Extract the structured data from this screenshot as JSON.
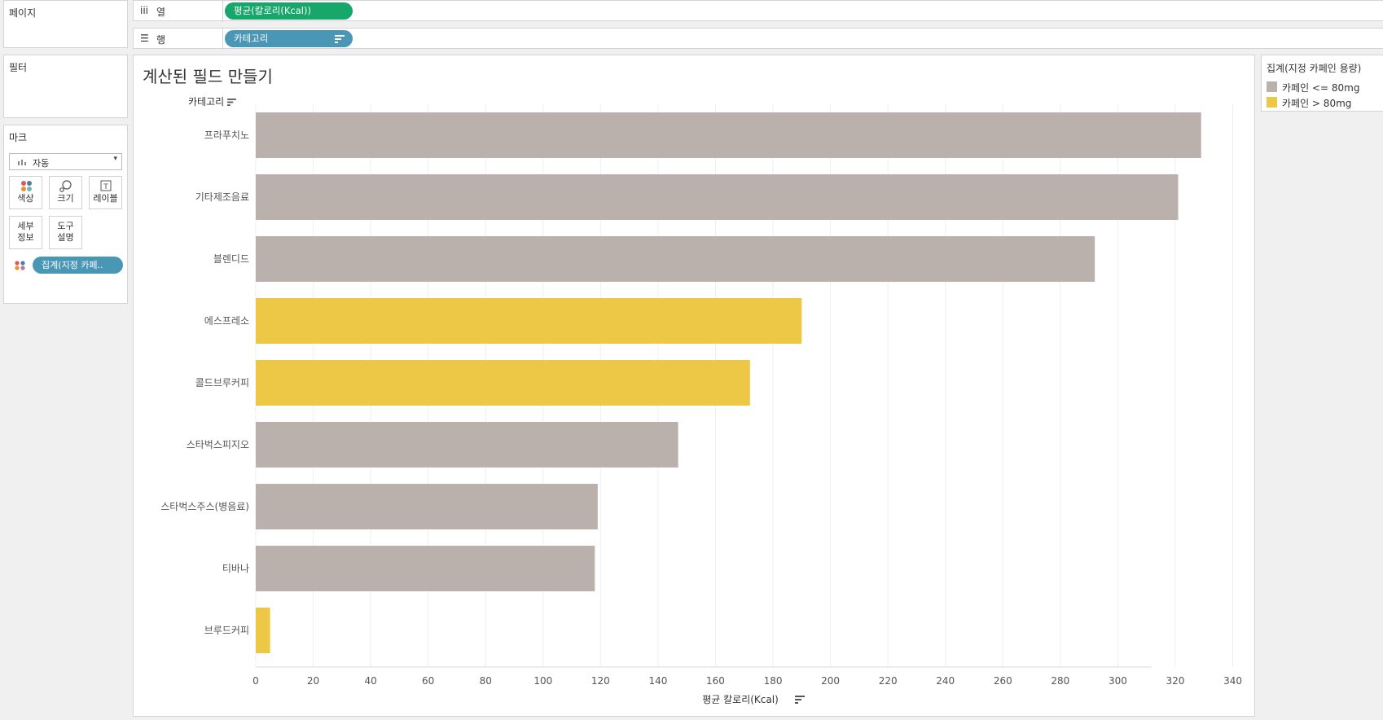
{
  "left_panels": {
    "pages_title": "페이지",
    "filters_title": "필터",
    "marks_title": "마크",
    "mark_type": "자동",
    "mark_buttons": {
      "color": "색상",
      "size": "크기",
      "label": "레이블",
      "detail_1": "세부",
      "detail_2": "정보",
      "tooltip_1": "도구",
      "tooltip_2": "설명"
    },
    "color_pill": "집계(지정 카페.."
  },
  "shelves": {
    "columns_label": "열",
    "columns_pill": "평균(칼로리(Kcal))",
    "rows_label": "행",
    "rows_pill": "카테고리"
  },
  "viz": {
    "title": "계산된 필드 만들기",
    "row_header": "카테고리"
  },
  "legend": {
    "title": "집계(지정 카페인 용량)",
    "items": [
      {
        "label": "카페인 <= 80mg",
        "color": "#bab0ac"
      },
      {
        "label": "카페인 > 80mg",
        "color": "#ecc846"
      }
    ]
  },
  "colors": {
    "low_caffeine": "#bab0ac",
    "high_caffeine": "#ecc846",
    "green_pill": "#17a76a",
    "blue_pill": "#4a97b5"
  },
  "chart_data": {
    "type": "bar",
    "orientation": "horizontal",
    "title": "계산된 필드 만들기",
    "xlabel": "평균 칼로리(Kcal)",
    "ylabel": "카테고리",
    "xlim": [
      0,
      350
    ],
    "x_ticks": [
      0,
      20,
      40,
      60,
      80,
      100,
      120,
      140,
      160,
      180,
      200,
      220,
      240,
      260,
      280,
      300,
      320,
      340
    ],
    "grid": "vertical",
    "legend_position": "right",
    "categories": [
      "프라푸치노",
      "기타제조음료",
      "블렌디드",
      "에스프레소",
      "콜드브루커피",
      "스타벅스피지오",
      "스타벅스주스(병음료)",
      "티바나",
      "브루드커피"
    ],
    "values": [
      329,
      321,
      292,
      190,
      172,
      147,
      119,
      118,
      5
    ],
    "caffeine_group": [
      "카페인 <= 80mg",
      "카페인 <= 80mg",
      "카페인 <= 80mg",
      "카페인 > 80mg",
      "카페인 > 80mg",
      "카페인 <= 80mg",
      "카페인 <= 80mg",
      "카페인 <= 80mg",
      "카페인 > 80mg"
    ]
  }
}
